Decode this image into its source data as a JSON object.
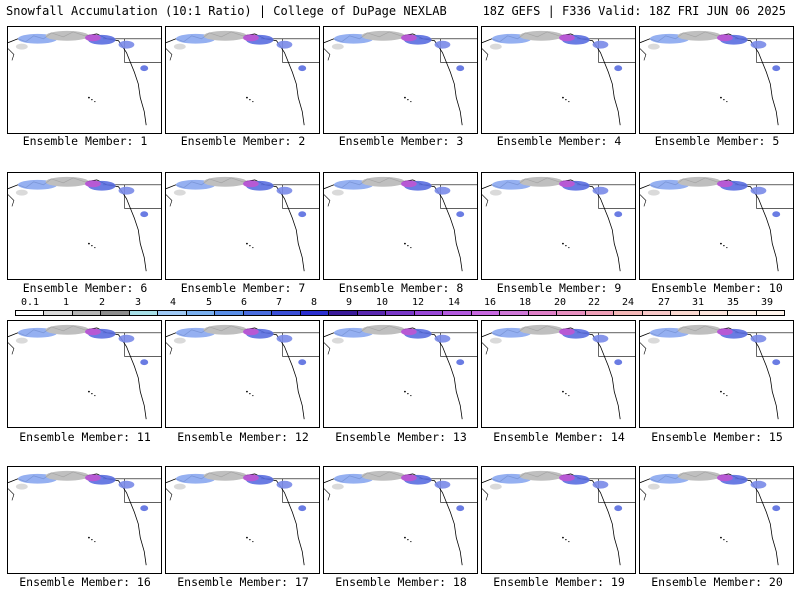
{
  "header": {
    "left": "Snowfall Accumulation (10:1 Ratio) | College of DuPage NEXLAB",
    "right": "18Z GEFS | F336 Valid: 18Z FRI JUN 06 2025"
  },
  "members": [
    {
      "label": "Ensemble Member: 1"
    },
    {
      "label": "Ensemble Member: 2"
    },
    {
      "label": "Ensemble Member: 3"
    },
    {
      "label": "Ensemble Member: 4"
    },
    {
      "label": "Ensemble Member: 5"
    },
    {
      "label": "Ensemble Member: 6"
    },
    {
      "label": "Ensemble Member: 7"
    },
    {
      "label": "Ensemble Member: 8"
    },
    {
      "label": "Ensemble Member: 9"
    },
    {
      "label": "Ensemble Member: 10"
    },
    {
      "label": "Ensemble Member: 11"
    },
    {
      "label": "Ensemble Member: 12"
    },
    {
      "label": "Ensemble Member: 13"
    },
    {
      "label": "Ensemble Member: 14"
    },
    {
      "label": "Ensemble Member: 15"
    },
    {
      "label": "Ensemble Member: 16"
    },
    {
      "label": "Ensemble Member: 17"
    },
    {
      "label": "Ensemble Member: 18"
    },
    {
      "label": "Ensemble Member: 19"
    },
    {
      "label": "Ensemble Member: 20"
    }
  ],
  "colorbar": {
    "ticks": [
      "0.1",
      "1",
      "2",
      "3",
      "4",
      "5",
      "6",
      "7",
      "8",
      "9",
      "10",
      "12",
      "14",
      "16",
      "18",
      "20",
      "22",
      "24",
      "27",
      "31",
      "35",
      "39"
    ],
    "colors": [
      "#ffffff",
      "#d9d9d9",
      "#b4b4b4",
      "#8c8c8c",
      "#a8e0e8",
      "#9ec9f5",
      "#7ab0f0",
      "#5a8fe8",
      "#4a6ee0",
      "#3a4fd8",
      "#2b2fd0",
      "#3a1a9a",
      "#5a28b0",
      "#7a38c8",
      "#9a48d8",
      "#b45ae0",
      "#c868e0",
      "#d078d8",
      "#e080c8",
      "#e890c0",
      "#f0a0b8",
      "#f5b8b8",
      "#f8c8c8",
      "#fad8d0",
      "#fce4dc",
      "#feeee4",
      "#fff4ec"
    ]
  }
}
